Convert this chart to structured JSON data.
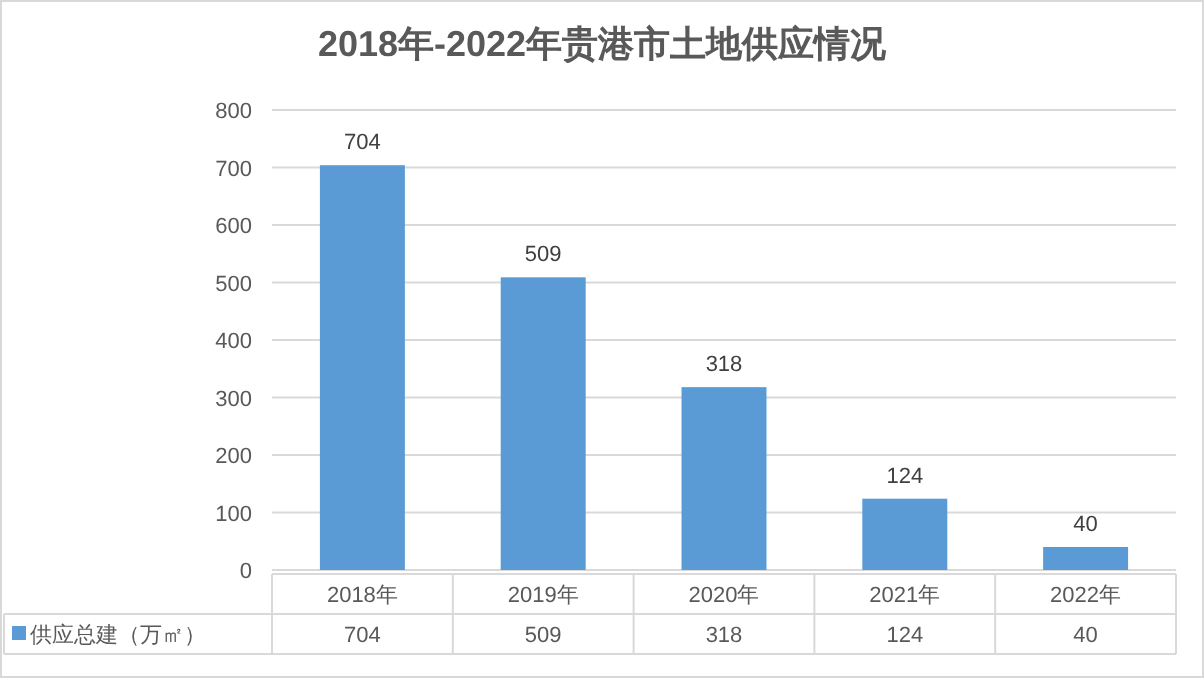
{
  "chart_data": {
    "type": "bar",
    "title": "2018年-2022年贵港市土地供应情况",
    "categories": [
      "2018年",
      "2019年",
      "2020年",
      "2021年",
      "2022年"
    ],
    "series": [
      {
        "name": "供应总建（万㎡）",
        "color": "#5b9bd5",
        "values": [
          704,
          509,
          318,
          124,
          40
        ]
      }
    ],
    "annotations": [
      "704",
      "509",
      "318",
      "124",
      "40"
    ],
    "ylim": [
      0,
      800
    ],
    "yticks": [
      0,
      100,
      200,
      300,
      400,
      500,
      600,
      700,
      800
    ],
    "grid": "y",
    "data_labels": true,
    "legend": "bottom"
  }
}
